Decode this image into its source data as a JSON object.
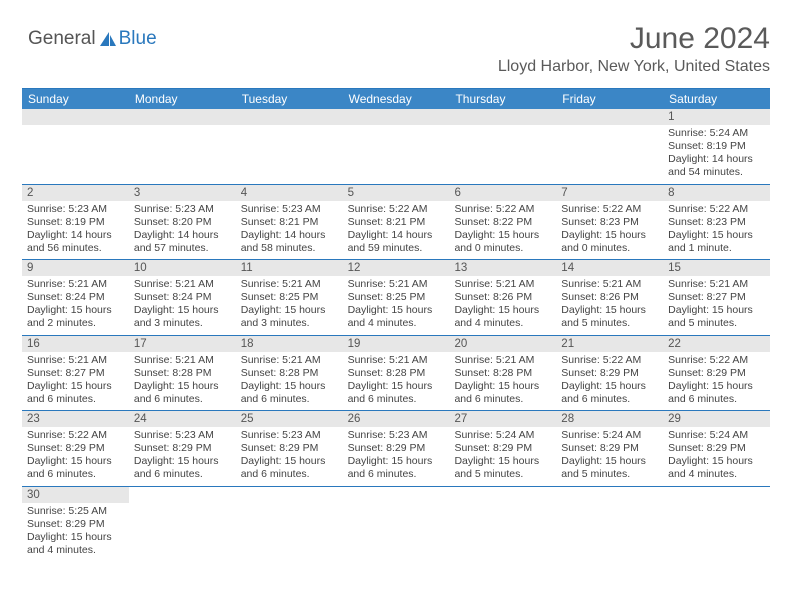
{
  "brand": {
    "part1": "General",
    "part2": "Blue",
    "logo_color": "#2a78bd",
    "text_color": "#555555"
  },
  "title": "June 2024",
  "location": "Lloyd Harbor, New York, United States",
  "colors": {
    "header_bg": "#3b86c6",
    "daynum_bg": "#e7e7e7",
    "rule": "#2a78bd",
    "text": "#444444"
  },
  "weekdays": [
    "Sunday",
    "Monday",
    "Tuesday",
    "Wednesday",
    "Thursday",
    "Friday",
    "Saturday"
  ],
  "weeks": [
    [
      null,
      null,
      null,
      null,
      null,
      null,
      {
        "n": "1",
        "sunrise": "5:24 AM",
        "sunset": "8:19 PM",
        "daylight": "14 hours and 54 minutes."
      }
    ],
    [
      {
        "n": "2",
        "sunrise": "5:23 AM",
        "sunset": "8:19 PM",
        "daylight": "14 hours and 56 minutes."
      },
      {
        "n": "3",
        "sunrise": "5:23 AM",
        "sunset": "8:20 PM",
        "daylight": "14 hours and 57 minutes."
      },
      {
        "n": "4",
        "sunrise": "5:23 AM",
        "sunset": "8:21 PM",
        "daylight": "14 hours and 58 minutes."
      },
      {
        "n": "5",
        "sunrise": "5:22 AM",
        "sunset": "8:21 PM",
        "daylight": "14 hours and 59 minutes."
      },
      {
        "n": "6",
        "sunrise": "5:22 AM",
        "sunset": "8:22 PM",
        "daylight": "15 hours and 0 minutes."
      },
      {
        "n": "7",
        "sunrise": "5:22 AM",
        "sunset": "8:23 PM",
        "daylight": "15 hours and 0 minutes."
      },
      {
        "n": "8",
        "sunrise": "5:22 AM",
        "sunset": "8:23 PM",
        "daylight": "15 hours and 1 minute."
      }
    ],
    [
      {
        "n": "9",
        "sunrise": "5:21 AM",
        "sunset": "8:24 PM",
        "daylight": "15 hours and 2 minutes."
      },
      {
        "n": "10",
        "sunrise": "5:21 AM",
        "sunset": "8:24 PM",
        "daylight": "15 hours and 3 minutes."
      },
      {
        "n": "11",
        "sunrise": "5:21 AM",
        "sunset": "8:25 PM",
        "daylight": "15 hours and 3 minutes."
      },
      {
        "n": "12",
        "sunrise": "5:21 AM",
        "sunset": "8:25 PM",
        "daylight": "15 hours and 4 minutes."
      },
      {
        "n": "13",
        "sunrise": "5:21 AM",
        "sunset": "8:26 PM",
        "daylight": "15 hours and 4 minutes."
      },
      {
        "n": "14",
        "sunrise": "5:21 AM",
        "sunset": "8:26 PM",
        "daylight": "15 hours and 5 minutes."
      },
      {
        "n": "15",
        "sunrise": "5:21 AM",
        "sunset": "8:27 PM",
        "daylight": "15 hours and 5 minutes."
      }
    ],
    [
      {
        "n": "16",
        "sunrise": "5:21 AM",
        "sunset": "8:27 PM",
        "daylight": "15 hours and 6 minutes."
      },
      {
        "n": "17",
        "sunrise": "5:21 AM",
        "sunset": "8:28 PM",
        "daylight": "15 hours and 6 minutes."
      },
      {
        "n": "18",
        "sunrise": "5:21 AM",
        "sunset": "8:28 PM",
        "daylight": "15 hours and 6 minutes."
      },
      {
        "n": "19",
        "sunrise": "5:21 AM",
        "sunset": "8:28 PM",
        "daylight": "15 hours and 6 minutes."
      },
      {
        "n": "20",
        "sunrise": "5:21 AM",
        "sunset": "8:28 PM",
        "daylight": "15 hours and 6 minutes."
      },
      {
        "n": "21",
        "sunrise": "5:22 AM",
        "sunset": "8:29 PM",
        "daylight": "15 hours and 6 minutes."
      },
      {
        "n": "22",
        "sunrise": "5:22 AM",
        "sunset": "8:29 PM",
        "daylight": "15 hours and 6 minutes."
      }
    ],
    [
      {
        "n": "23",
        "sunrise": "5:22 AM",
        "sunset": "8:29 PM",
        "daylight": "15 hours and 6 minutes."
      },
      {
        "n": "24",
        "sunrise": "5:23 AM",
        "sunset": "8:29 PM",
        "daylight": "15 hours and 6 minutes."
      },
      {
        "n": "25",
        "sunrise": "5:23 AM",
        "sunset": "8:29 PM",
        "daylight": "15 hours and 6 minutes."
      },
      {
        "n": "26",
        "sunrise": "5:23 AM",
        "sunset": "8:29 PM",
        "daylight": "15 hours and 6 minutes."
      },
      {
        "n": "27",
        "sunrise": "5:24 AM",
        "sunset": "8:29 PM",
        "daylight": "15 hours and 5 minutes."
      },
      {
        "n": "28",
        "sunrise": "5:24 AM",
        "sunset": "8:29 PM",
        "daylight": "15 hours and 5 minutes."
      },
      {
        "n": "29",
        "sunrise": "5:24 AM",
        "sunset": "8:29 PM",
        "daylight": "15 hours and 4 minutes."
      }
    ],
    [
      {
        "n": "30",
        "sunrise": "5:25 AM",
        "sunset": "8:29 PM",
        "daylight": "15 hours and 4 minutes."
      },
      null,
      null,
      null,
      null,
      null,
      null
    ]
  ],
  "labels": {
    "sunrise": "Sunrise: ",
    "sunset": "Sunset: ",
    "daylight": "Daylight: "
  }
}
